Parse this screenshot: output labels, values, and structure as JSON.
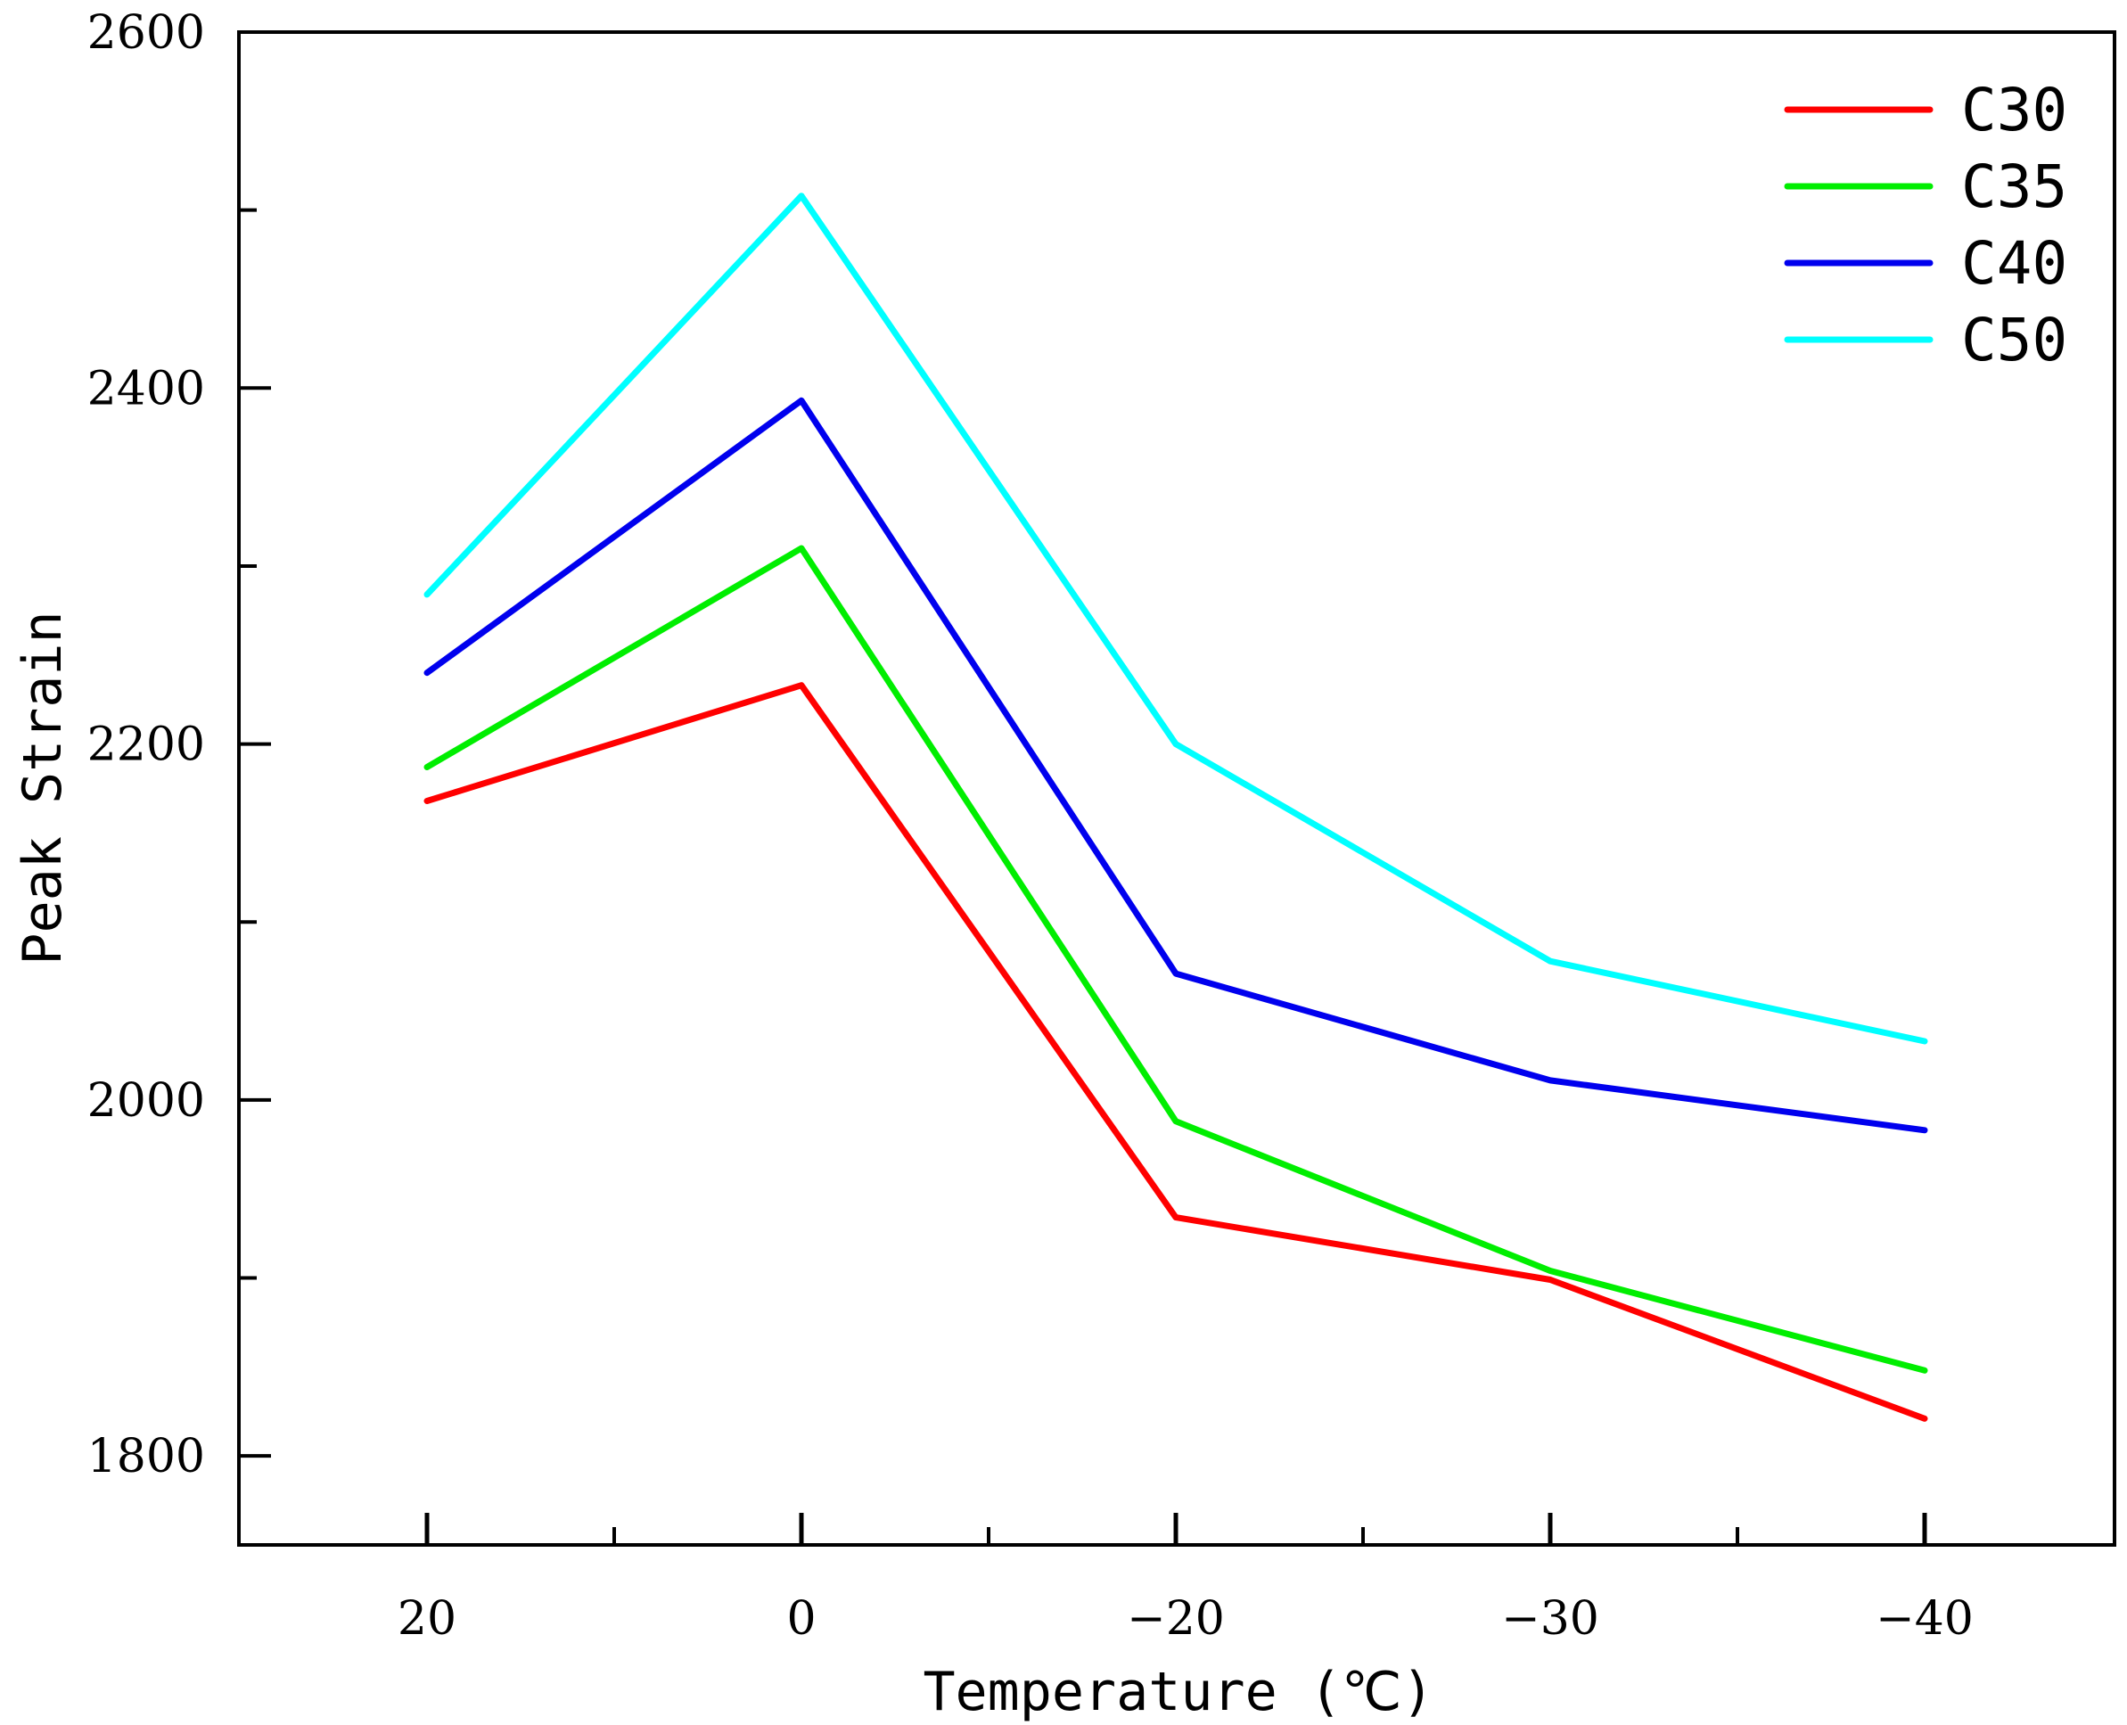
{
  "chart_data": {
    "type": "line",
    "title": "",
    "xlabel": "Temperature (℃)",
    "ylabel": "Peak Strain",
    "categories": [
      "20",
      "0",
      "−20",
      "−30",
      "−40"
    ],
    "ylim": [
      1750,
      2600
    ],
    "yticks": [
      1800,
      2000,
      2200,
      2400,
      2600
    ],
    "y_tick_labels": [
      "1800",
      "2000",
      "2200",
      "2400",
      "2600"
    ],
    "legend_position": "top-right",
    "series": [
      {
        "name": "C30",
        "color": "#ff0000",
        "values": [
          2168,
          2233,
          1934,
          1899,
          1821
        ]
      },
      {
        "name": "C35",
        "color": "#00ee00",
        "values": [
          2187,
          2310,
          1988,
          1904,
          1848
        ]
      },
      {
        "name": "C40",
        "color": "#0000ee",
        "values": [
          2240,
          2393,
          2071,
          2011,
          1983
        ]
      },
      {
        "name": "C50",
        "color": "#00ffff",
        "values": [
          2284,
          2508,
          2200,
          2078,
          2033
        ]
      }
    ]
  }
}
